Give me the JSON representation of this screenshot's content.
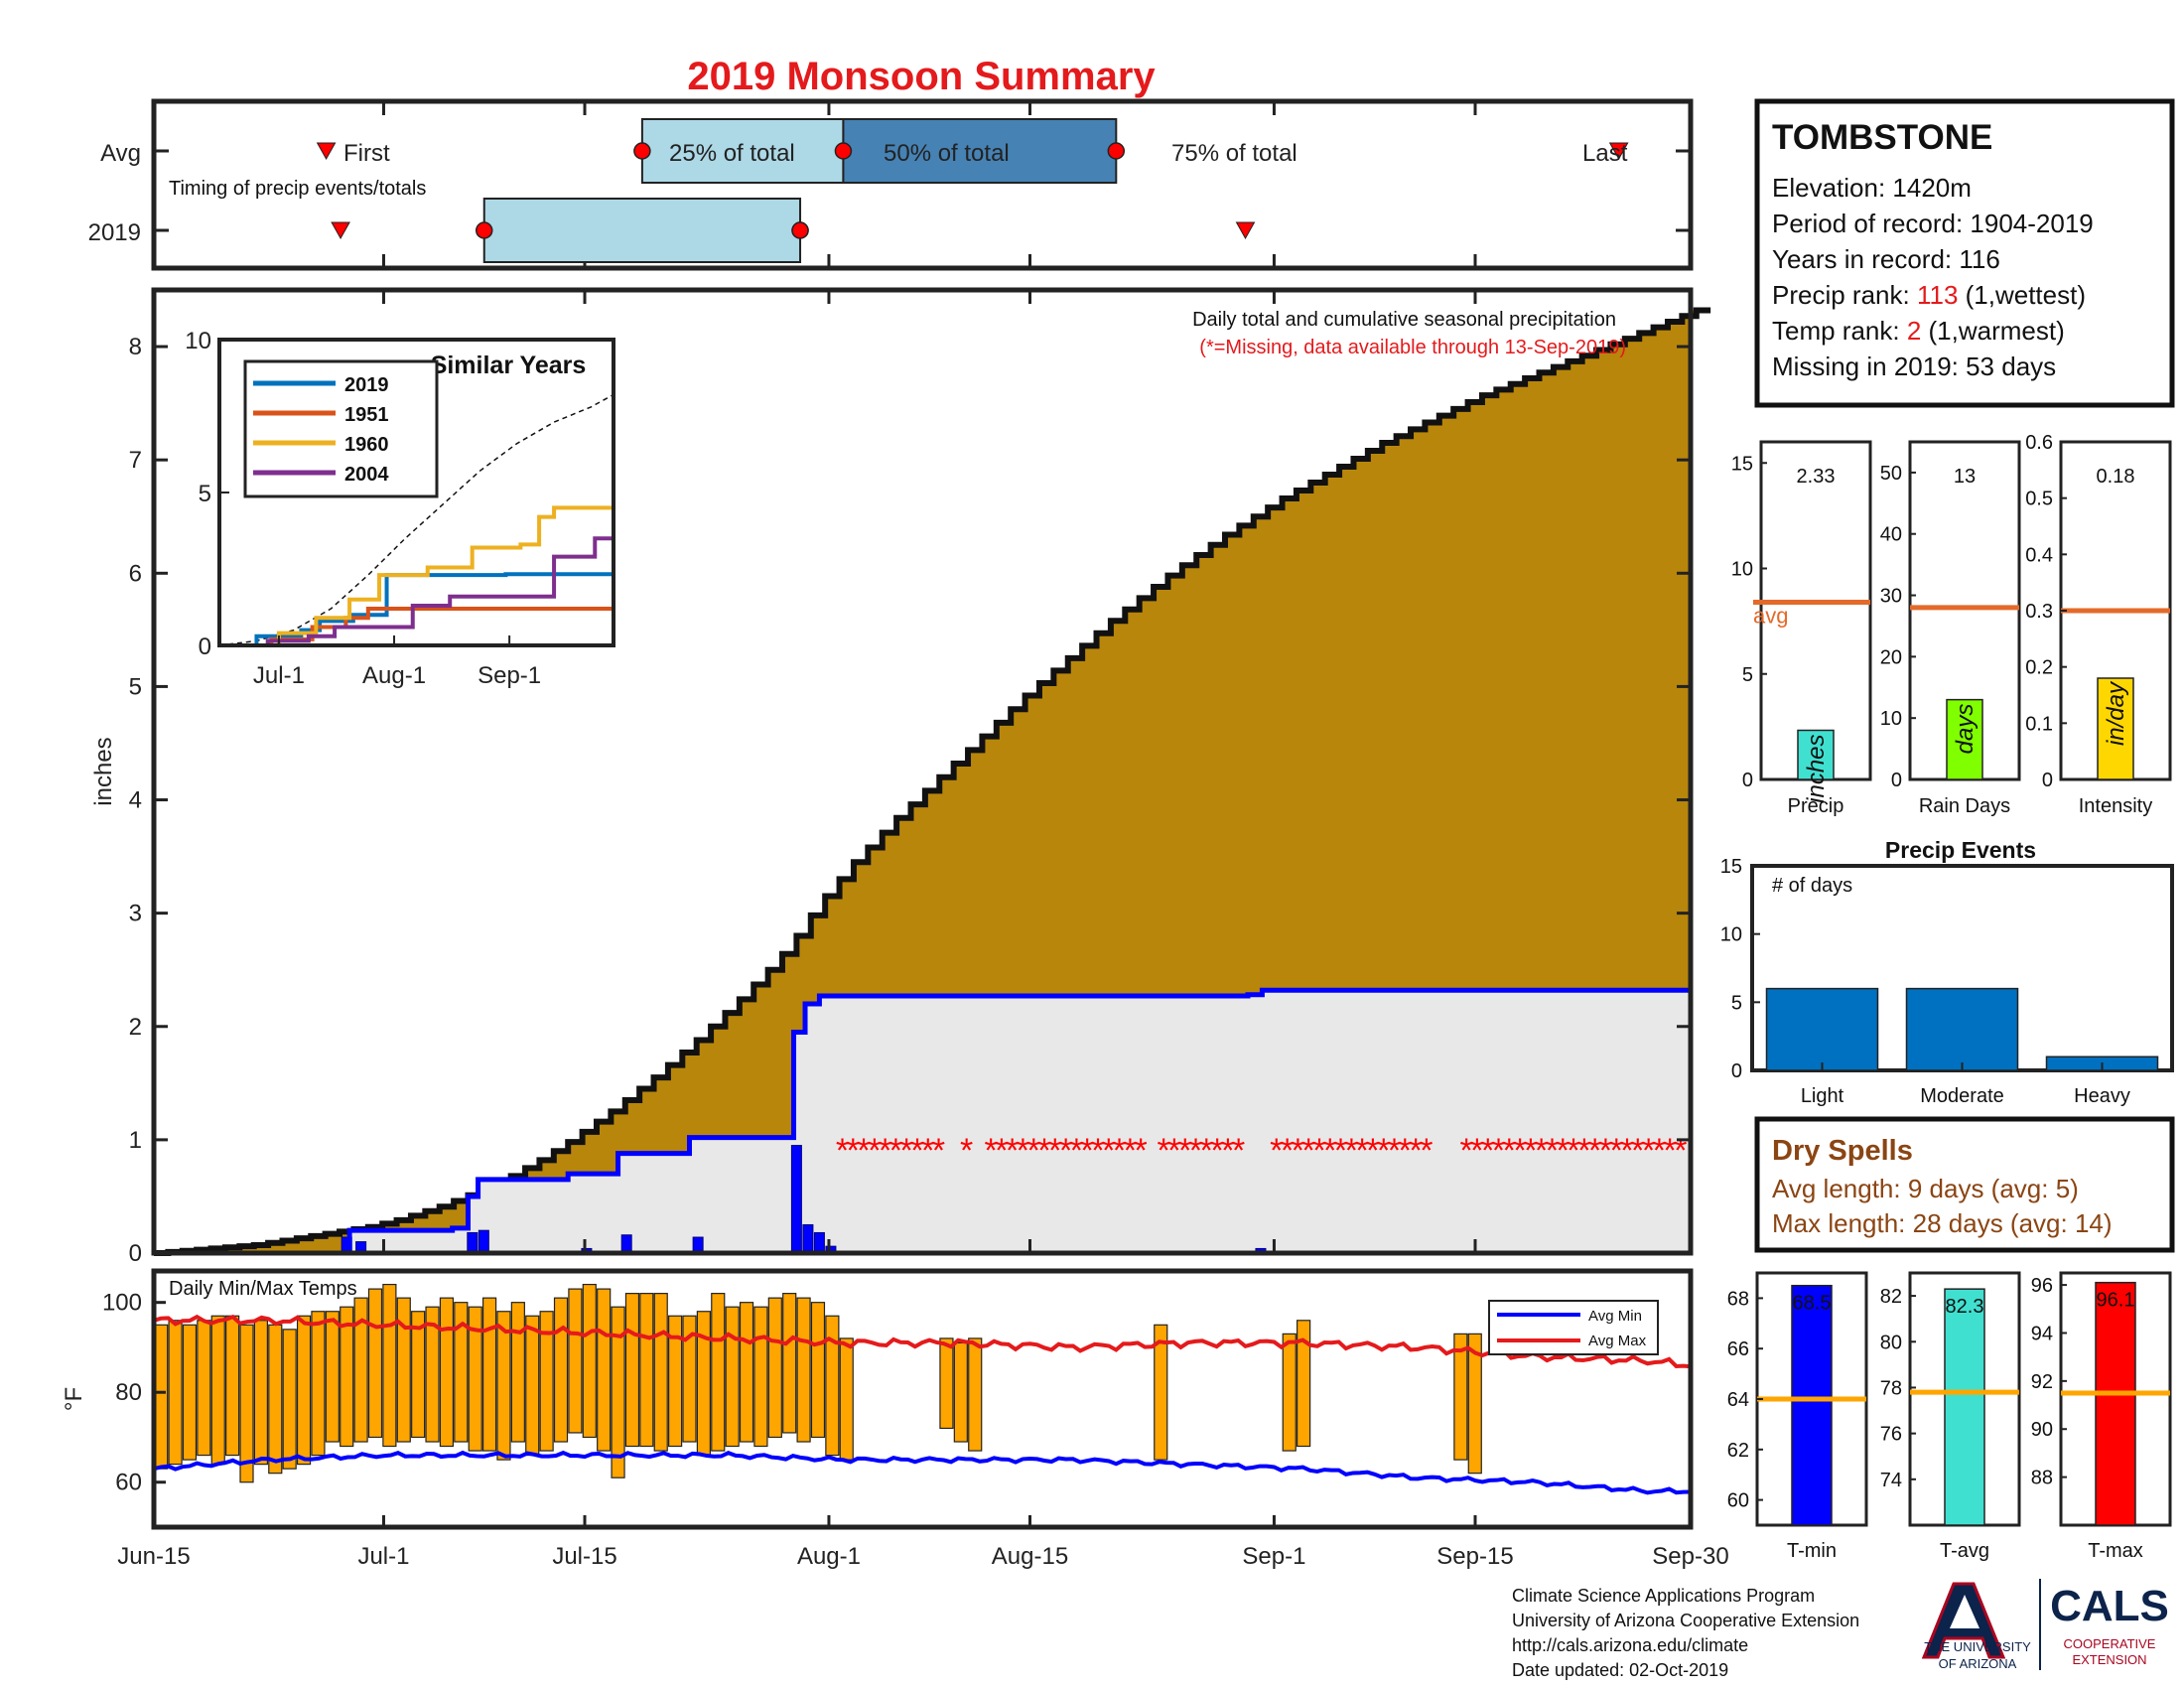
{
  "page_title": "2019 Monsoon Summary",
  "timing": {
    "caption": "Timing of precip events/totals",
    "row_labels": [
      "Avg",
      "2019"
    ],
    "avg": {
      "first": "Jun-27",
      "p25": "Jul-19",
      "p50": "Aug-2",
      "p75": "Aug-21",
      "last": "Sep-25"
    },
    "y2019": {
      "first": "Jun-28",
      "p25": "Jul-8",
      "p50": "Jul-30",
      "p75": "Jul-30",
      "last": "Aug-30"
    },
    "labels": {
      "first": "First",
      "p25": "25% of total",
      "p50": "50% of total",
      "p75": "75% of total",
      "last": "Last"
    }
  },
  "info": {
    "station": "TOMBSTONE",
    "elevation_label": "Elevation: 1420m",
    "period_label": "Period of record: 1904-2019",
    "years_label": "Years in record: 116",
    "precip_rank_prefix": "Precip rank: ",
    "precip_rank_value": "113",
    "precip_rank_suffix": " (1,wettest)",
    "temp_rank_prefix": "Temp rank: ",
    "temp_rank_value": "2",
    "temp_rank_suffix": " (1,warmest)",
    "missing_label": "Missing in 2019: 53 days"
  },
  "footer": {
    "line1": "Climate Science Applications Program",
    "line2": "University of Arizona Cooperative Extension",
    "line3": "http://cals.arizona.edu/climate",
    "line4": " Date updated: 02-Oct-2019",
    "ua_line1": "THE UNIVERSITY",
    "ua_line2": "OF ARIZONA",
    "cals_text": "CALS",
    "cals_sub1": "COOPERATIVE",
    "cals_sub2": "EXTENSION"
  },
  "colors": {
    "red": "#e41a1c",
    "avg_fill": "#b8860b",
    "obs_line": "#0000ff",
    "obs_fill": "#e8e8e8",
    "box_light": "#add8e6",
    "box_dark": "#4682b4",
    "temp_bar": "#ffa500",
    "avg_orange": "#e36a2a"
  },
  "chart_data": [
    {
      "id": "main_precip",
      "type": "area",
      "title": "Daily total and cumulative seasonal precipitation",
      "subtitle": "(*=Missing, data available through 13-Sep-2019)",
      "ylabel": "inches",
      "ylim": [
        0,
        8.5
      ],
      "yticks": [
        0,
        1,
        2,
        3,
        4,
        5,
        6,
        7,
        8
      ],
      "x_dates": [
        "Jun-15",
        "Jul-1",
        "Jul-15",
        "Aug-1",
        "Aug-15",
        "Sep-1",
        "Sep-15",
        "Sep-30"
      ],
      "x_day_offsets": [
        0,
        16,
        30,
        47,
        61,
        78,
        92,
        107
      ],
      "avg_cumulative": [
        0,
        0.01,
        0.02,
        0.03,
        0.04,
        0.05,
        0.06,
        0.07,
        0.09,
        0.11,
        0.13,
        0.15,
        0.17,
        0.19,
        0.21,
        0.23,
        0.26,
        0.29,
        0.33,
        0.37,
        0.41,
        0.46,
        0.51,
        0.56,
        0.62,
        0.68,
        0.75,
        0.82,
        0.9,
        0.98,
        1.07,
        1.16,
        1.25,
        1.35,
        1.45,
        1.55,
        1.66,
        1.77,
        1.88,
        2.0,
        2.12,
        2.24,
        2.37,
        2.5,
        2.64,
        2.8,
        2.98,
        3.15,
        3.3,
        3.45,
        3.58,
        3.71,
        3.84,
        3.96,
        4.08,
        4.2,
        4.32,
        4.44,
        4.56,
        4.68,
        4.8,
        4.92,
        5.03,
        5.14,
        5.25,
        5.36,
        5.47,
        5.58,
        5.68,
        5.78,
        5.88,
        5.98,
        6.07,
        6.16,
        6.25,
        6.34,
        6.42,
        6.5,
        6.58,
        6.66,
        6.73,
        6.8,
        6.87,
        6.94,
        7.01,
        7.08,
        7.15,
        7.21,
        7.27,
        7.33,
        7.39,
        7.45,
        7.51,
        7.57,
        7.62,
        7.67,
        7.72,
        7.77,
        7.82,
        7.87,
        7.92,
        7.97,
        8.02,
        8.07,
        8.12,
        8.17,
        8.22,
        8.27,
        8.32
      ],
      "obs_cumulative": [
        [
          0,
          0
        ],
        [
          13.7,
          0
        ],
        [
          13.7,
          0.2
        ],
        [
          20.9,
          0.2
        ],
        [
          20.9,
          0.22
        ],
        [
          22,
          0.22
        ],
        [
          22,
          0.5
        ],
        [
          22.7,
          0.5
        ],
        [
          22.7,
          0.65
        ],
        [
          29,
          0.65
        ],
        [
          29,
          0.7
        ],
        [
          32.5,
          0.7
        ],
        [
          32.5,
          0.88
        ],
        [
          37.5,
          0.88
        ],
        [
          37.5,
          1.02
        ],
        [
          44.8,
          1.02
        ],
        [
          44.8,
          1.95
        ],
        [
          45.6,
          1.95
        ],
        [
          45.6,
          2.2
        ],
        [
          46.6,
          2.2
        ],
        [
          46.6,
          2.27
        ],
        [
          76.6,
          2.27
        ],
        [
          76.6,
          2.28
        ],
        [
          77.6,
          2.28
        ],
        [
          77.6,
          2.32
        ],
        [
          107.6,
          2.32
        ]
      ],
      "daily_bars": [
        [
          13.5,
          0.14
        ],
        [
          14.5,
          0.1
        ],
        [
          22.3,
          0.18
        ],
        [
          23.1,
          0.2
        ],
        [
          30.3,
          0.04
        ],
        [
          33.1,
          0.16
        ],
        [
          38.1,
          0.14
        ],
        [
          45,
          0.95
        ],
        [
          45.8,
          0.25
        ],
        [
          46.6,
          0.18
        ],
        [
          47.4,
          0.06
        ],
        [
          77.5,
          0.04
        ]
      ],
      "missing_marker": "*",
      "missing_groups": [
        [
          48.2,
          55.1
        ],
        [
          56.9,
          56.9
        ],
        [
          58.6,
          69.4
        ],
        [
          70.7,
          76.4
        ],
        [
          78.6,
          89.4
        ],
        [
          91.9,
          107.6
        ]
      ],
      "missing_y": 1
    },
    {
      "id": "similar_years",
      "type": "line",
      "title": "Similar Years",
      "ylim": [
        0,
        10
      ],
      "yticks": [
        0,
        5,
        10
      ],
      "x_dates": [
        "Jul-1",
        "Aug-1",
        "Sep-1"
      ],
      "series": [
        {
          "name": "2019",
          "color": "#0072bd",
          "points": [
            [
              0,
              0
            ],
            [
              10,
              0
            ],
            [
              10,
              0.3
            ],
            [
              22,
              0.3
            ],
            [
              22,
              0.5
            ],
            [
              27,
              0.5
            ],
            [
              27,
              0.8
            ],
            [
              36,
              0.8
            ],
            [
              36,
              1.0
            ],
            [
              45,
              1.0
            ],
            [
              45,
              2.3
            ],
            [
              77,
              2.3
            ],
            [
              77,
              2.33
            ],
            [
              106,
              2.33
            ]
          ]
        },
        {
          "name": "1951",
          "color": "#d95319",
          "points": [
            [
              0,
              0
            ],
            [
              14,
              0
            ],
            [
              14,
              0.2
            ],
            [
              25,
              0.2
            ],
            [
              25,
              0.6
            ],
            [
              34,
              0.6
            ],
            [
              34,
              0.9
            ],
            [
              40,
              0.9
            ],
            [
              40,
              1.2
            ],
            [
              106,
              1.2
            ]
          ]
        },
        {
          "name": "1960",
          "color": "#edb120",
          "points": [
            [
              0,
              0
            ],
            [
              16,
              0
            ],
            [
              16,
              0.4
            ],
            [
              26,
              0.4
            ],
            [
              26,
              0.9
            ],
            [
              35,
              0.9
            ],
            [
              35,
              1.5
            ],
            [
              43,
              1.5
            ],
            [
              43,
              2.3
            ],
            [
              56,
              2.3
            ],
            [
              56,
              2.55
            ],
            [
              68,
              2.55
            ],
            [
              68,
              3.2
            ],
            [
              81,
              3.2
            ],
            [
              81,
              3.3
            ],
            [
              86,
              3.3
            ],
            [
              86,
              4.2
            ],
            [
              90,
              4.2
            ],
            [
              90,
              4.5
            ],
            [
              106,
              4.5
            ]
          ]
        },
        {
          "name": "2004",
          "color": "#7e2f8e",
          "points": [
            [
              0,
              0
            ],
            [
              13,
              0
            ],
            [
              13,
              0.15
            ],
            [
              24,
              0.15
            ],
            [
              24,
              0.3
            ],
            [
              31,
              0.3
            ],
            [
              31,
              0.6
            ],
            [
              52,
              0.6
            ],
            [
              52,
              1.3
            ],
            [
              62,
              1.3
            ],
            [
              62,
              1.6
            ],
            [
              90,
              1.6
            ],
            [
              90,
              2.9
            ],
            [
              101,
              2.9
            ],
            [
              101,
              3.5
            ],
            [
              106,
              3.5
            ]
          ]
        }
      ],
      "avg_dashed": [
        [
          0,
          0
        ],
        [
          10,
          0.15
        ],
        [
          20,
          0.5
        ],
        [
          30,
          1.2
        ],
        [
          40,
          2.3
        ],
        [
          50,
          3.5
        ],
        [
          60,
          4.6
        ],
        [
          70,
          5.7
        ],
        [
          80,
          6.6
        ],
        [
          90,
          7.3
        ],
        [
          100,
          7.8
        ],
        [
          106,
          8.2
        ]
      ]
    },
    {
      "id": "seasonal_bars",
      "type": "bar",
      "panels": [
        {
          "label": "Precip",
          "value": 2.33,
          "avg": 8.4,
          "ylim": [
            0,
            16
          ],
          "yticks": [
            0,
            5,
            10,
            15
          ],
          "unit": "inches",
          "color": "#40e0d0",
          "avg_label": "avg"
        },
        {
          "label": "Rain Days",
          "value": 13,
          "avg": 28,
          "ylim": [
            0,
            55
          ],
          "yticks": [
            0,
            10,
            20,
            30,
            40,
            50
          ],
          "unit": "days",
          "color": "#7fff00"
        },
        {
          "label": "Intensity",
          "value": 0.18,
          "avg": 0.3,
          "ylim": [
            0,
            0.6
          ],
          "yticks": [
            0,
            0.1,
            0.2,
            0.3,
            0.4,
            0.5,
            0.6
          ],
          "unit": "in/day",
          "color": "#ffd700"
        }
      ]
    },
    {
      "id": "precip_events",
      "type": "bar",
      "title": "Precip Events",
      "annotation": "# of days",
      "categories": [
        "Light",
        "Moderate",
        "Heavy"
      ],
      "values": [
        6,
        6,
        1
      ],
      "ylim": [
        0,
        15
      ],
      "yticks": [
        0,
        5,
        10,
        15
      ],
      "color": "#0070c0"
    },
    {
      "id": "daily_temps",
      "type": "bar",
      "title": "Daily Min/Max Temps",
      "ylabel": "°F",
      "ylim": [
        50,
        107
      ],
      "yticks": [
        60,
        80,
        100
      ],
      "legend": [
        "Avg Min",
        "Avg Max"
      ],
      "day_start": 0,
      "ranges": [
        [
          63,
          95
        ],
        [
          64,
          96
        ],
        [
          65,
          95
        ],
        [
          66,
          96
        ],
        [
          64,
          97
        ],
        [
          66,
          97
        ],
        [
          60,
          95
        ],
        [
          64,
          96
        ],
        [
          62,
          95
        ],
        [
          63,
          94
        ],
        [
          64,
          97
        ],
        [
          66,
          98
        ],
        [
          69,
          98
        ],
        [
          68,
          99
        ],
        [
          69,
          101
        ],
        [
          70,
          103
        ],
        [
          68,
          104
        ],
        [
          69,
          101
        ],
        [
          70,
          98
        ],
        [
          69,
          99
        ],
        [
          68,
          101
        ],
        [
          69,
          100
        ],
        [
          67,
          99
        ],
        [
          67,
          101
        ],
        [
          65,
          98
        ],
        [
          69,
          100
        ],
        [
          66,
          97
        ],
        [
          67,
          98
        ],
        [
          69,
          101
        ],
        [
          71,
          103
        ],
        [
          70,
          104
        ],
        [
          67,
          103
        ],
        [
          61,
          99
        ],
        [
          68,
          102
        ],
        [
          68,
          102
        ],
        [
          67,
          102
        ],
        [
          68,
          97
        ],
        [
          69,
          97
        ],
        [
          66,
          98
        ],
        [
          67,
          102
        ],
        [
          68,
          99
        ],
        [
          69,
          100
        ],
        [
          68,
          99
        ],
        [
          70,
          101
        ],
        [
          71,
          102
        ],
        [
          69,
          101
        ],
        [
          70,
          100
        ],
        [
          66,
          97
        ],
        [
          65,
          92
        ],
        null,
        null,
        null,
        null,
        null,
        null,
        [
          72,
          92
        ],
        [
          69,
          91
        ],
        [
          67,
          92
        ],
        null,
        null,
        null,
        null,
        null,
        null,
        null,
        null,
        null,
        null,
        null,
        null,
        [
          65,
          95
        ],
        null,
        null,
        null,
        null,
        null,
        null,
        null,
        null,
        [
          67,
          93
        ],
        [
          68,
          96
        ],
        null,
        null,
        null,
        null,
        null,
        null,
        null,
        null,
        null,
        null,
        [
          65,
          93
        ],
        [
          62,
          93
        ],
        null,
        null,
        null,
        null,
        null,
        null,
        null,
        null,
        null,
        null,
        null,
        null,
        null,
        null,
        null,
        null,
        null
      ],
      "avg_max": [
        [
          0,
          96
        ],
        [
          8,
          96
        ],
        [
          16,
          95
        ],
        [
          24,
          94
        ],
        [
          32,
          93
        ],
        [
          40,
          92
        ],
        [
          48,
          91
        ],
        [
          56,
          91
        ],
        [
          64,
          90
        ],
        [
          72,
          91
        ],
        [
          80,
          91
        ],
        [
          88,
          90
        ],
        [
          96,
          88
        ],
        [
          104,
          87
        ],
        [
          107,
          86
        ]
      ],
      "avg_min": [
        [
          0,
          63
        ],
        [
          8,
          65
        ],
        [
          16,
          66
        ],
        [
          24,
          66
        ],
        [
          32,
          66
        ],
        [
          40,
          66
        ],
        [
          48,
          65
        ],
        [
          56,
          65
        ],
        [
          64,
          65
        ],
        [
          72,
          64
        ],
        [
          80,
          63
        ],
        [
          88,
          61
        ],
        [
          96,
          60
        ],
        [
          104,
          58
        ],
        [
          107,
          58
        ]
      ]
    },
    {
      "id": "seasonal_temps",
      "type": "bar",
      "panels": [
        {
          "label": "T-min",
          "value": 68.5,
          "avg": 64,
          "ylim": [
            59,
            69
          ],
          "yticks": [
            60,
            62,
            64,
            66,
            68
          ],
          "color": "#0000ff"
        },
        {
          "label": "T-avg",
          "value": 82.3,
          "avg": 77.8,
          "ylim": [
            72,
            83
          ],
          "yticks": [
            74,
            76,
            78,
            80,
            82
          ],
          "color": "#40e0d0"
        },
        {
          "label": "T-max",
          "value": 96.1,
          "avg": 91.5,
          "ylim": [
            86,
            96.5
          ],
          "yticks": [
            88,
            90,
            92,
            94,
            96
          ],
          "color": "#ff0000"
        }
      ]
    },
    {
      "id": "dry_spells",
      "type": "table",
      "title": "Dry Spells",
      "rows": [
        "Avg length: 9 days (avg: 5)",
        "Max length: 28 days (avg: 14)"
      ]
    }
  ]
}
